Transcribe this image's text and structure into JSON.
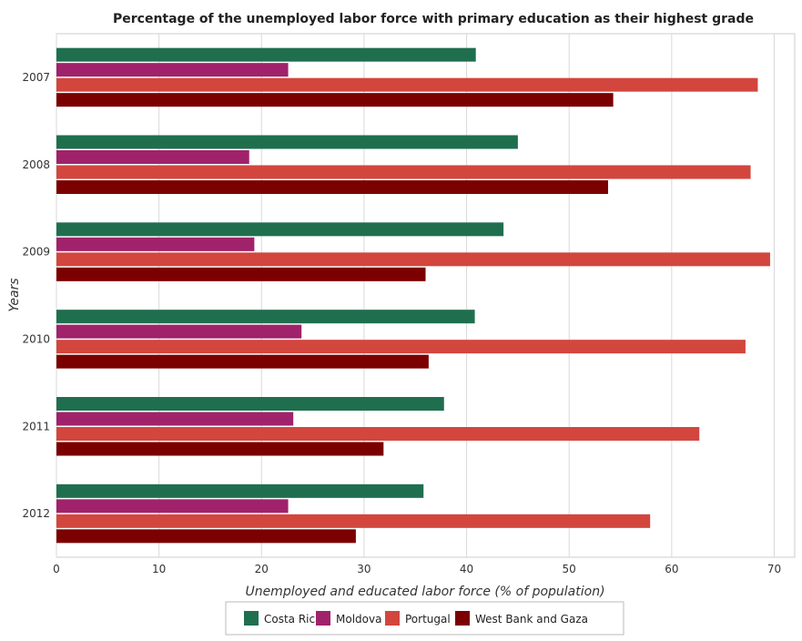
{
  "chart_data": {
    "type": "bar",
    "orientation": "horizontal",
    "title": "Percentage of the unemployed labor force with primary education as their highest grade",
    "xlabel": "Unemployed and educated labor force (% of population)",
    "ylabel": "Years",
    "xlim": [
      0,
      72
    ],
    "xticks": [
      0,
      10,
      20,
      30,
      40,
      50,
      60,
      70
    ],
    "categories": [
      "2007",
      "2008",
      "2009",
      "2010",
      "2011",
      "2012"
    ],
    "grid": true,
    "legend_position": "bottom",
    "series": [
      {
        "name": "Costa Rica",
        "color": "#1f6f4f",
        "values": [
          40.9,
          45.0,
          43.6,
          40.8,
          37.8,
          35.8
        ]
      },
      {
        "name": "Moldova",
        "color": "#a0226b",
        "values": [
          22.6,
          18.8,
          19.3,
          23.9,
          23.1,
          22.6
        ]
      },
      {
        "name": "Portugal",
        "color": "#d2463e",
        "values": [
          68.4,
          67.7,
          69.6,
          67.2,
          62.7,
          57.9
        ]
      },
      {
        "name": "West Bank and Gaza",
        "color": "#7b0000",
        "values": [
          54.3,
          53.8,
          36.0,
          36.3,
          31.9,
          29.2
        ]
      }
    ]
  }
}
